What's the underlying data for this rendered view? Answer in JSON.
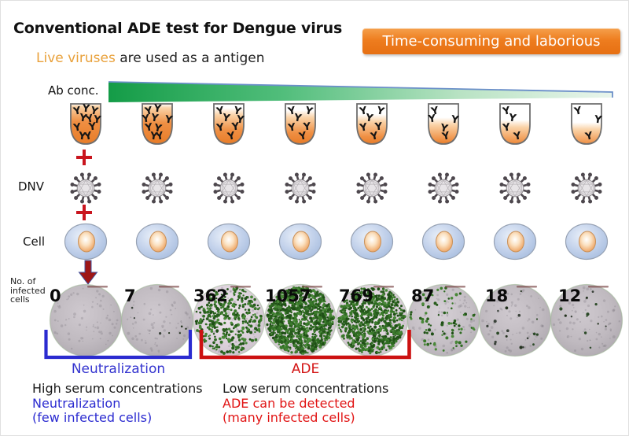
{
  "title": "Conventional ADE test for Dengue virus",
  "badge_label": "Time-consuming and laborious",
  "subtitle": {
    "highlight": "Live viruses",
    "rest": " are used as a antigen"
  },
  "ab_axis_label": "Ab conc.",
  "antibody_row": {
    "tube_count": 8,
    "antibody_counts": [
      10,
      9,
      7,
      6,
      6,
      5,
      4,
      3
    ],
    "fill_fraction_from_top": [
      0.06,
      0.1,
      0.28,
      0.34,
      0.44,
      0.52,
      0.58,
      0.64
    ]
  },
  "virus_row": {
    "label": "DNV",
    "count": 8
  },
  "cell_row": {
    "label": "Cell",
    "count": 8
  },
  "plus_symbol": "+",
  "wells_row": {
    "label_lines": [
      "No. of",
      "infected",
      "cells"
    ],
    "infected_cell_counts": [
      0,
      7,
      362,
      1057,
      769,
      87,
      18,
      12
    ]
  },
  "brackets": {
    "neutralization": {
      "label": "Neutralization",
      "color": "#2B2BD0"
    },
    "ade": {
      "label": "ADE",
      "color": "#CC1111"
    }
  },
  "legend": {
    "left": {
      "lines": [
        "High serum concentrations",
        "Neutralization",
        "(few infected cells)"
      ]
    },
    "right": {
      "lines": [
        "Low serum concentrations",
        "ADE can be detected",
        "(many infected cells)"
      ]
    }
  },
  "colors": {
    "badge_orange": "#EE7D1F",
    "highlight_orange": "#E9A13B",
    "gradient_green": "#149C47",
    "gradient_edge_blue": "#6B8FC9",
    "neutralization_blue": "#2B2BD0",
    "ade_red": "#CC1111",
    "plus_red": "#C9151E",
    "arrow_dark_red": "#9E1616"
  }
}
